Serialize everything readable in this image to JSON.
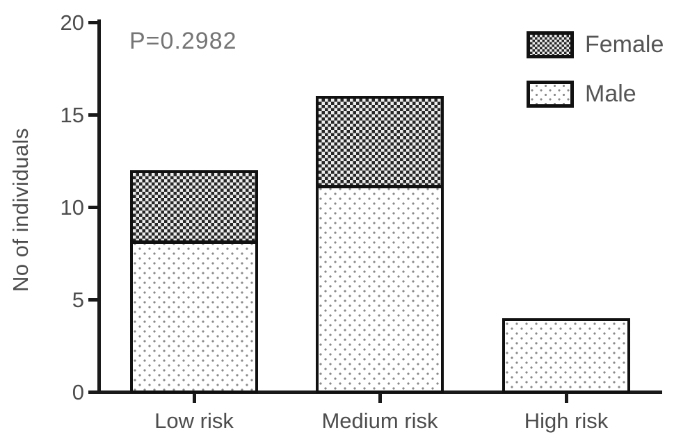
{
  "chart_data": {
    "type": "bar",
    "stacked": true,
    "title": "",
    "categories": [
      "Low risk",
      "Medium risk",
      "High risk"
    ],
    "series": [
      {
        "name": "Male",
        "pattern": "dots",
        "values": [
          8,
          11,
          4
        ]
      },
      {
        "name": "Female",
        "pattern": "checker",
        "values": [
          4,
          5,
          0
        ]
      }
    ],
    "xlabel": "",
    "ylabel": "No of individuals",
    "ylim": [
      0,
      20
    ],
    "yticks": [
      0,
      5,
      10,
      15,
      20
    ],
    "grid": false,
    "legend_position": "top-right"
  },
  "annotation": {
    "p_value": "P=0.2982"
  },
  "legend": {
    "items": [
      {
        "label": "Female",
        "pattern": "checker"
      },
      {
        "label": "Male",
        "pattern": "dots"
      }
    ]
  },
  "colors": {
    "axis": "#1a1a1a",
    "tick_text": "#4d4d4d",
    "annotation_text": "#757575",
    "bar_border": "#111111",
    "checker_dark": "#262626",
    "checker_light": "#ececec",
    "dot": "#8a8a8a"
  }
}
